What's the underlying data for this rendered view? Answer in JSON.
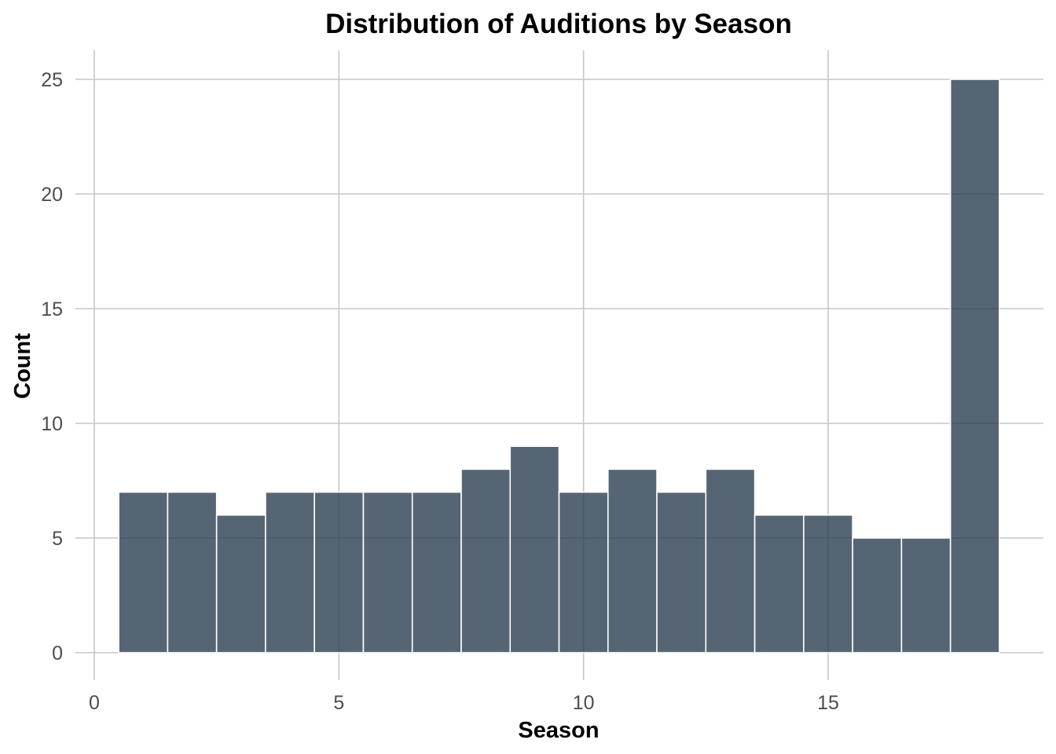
{
  "chart_data": {
    "type": "bar",
    "title": "Distribution of Auditions by Season",
    "xlabel": "Season",
    "ylabel": "Count",
    "x": [
      1,
      2,
      3,
      4,
      5,
      6,
      7,
      8,
      9,
      10,
      11,
      12,
      13,
      14,
      15,
      16,
      17,
      18
    ],
    "values": [
      7,
      7,
      6,
      7,
      7,
      7,
      7,
      8,
      9,
      7,
      8,
      7,
      8,
      6,
      6,
      5,
      5,
      25
    ],
    "bin_width": 1,
    "xlim": [
      0,
      19
    ],
    "ylim": [
      0,
      26
    ],
    "x_ticks": [
      0,
      5,
      10,
      15
    ],
    "y_ticks": [
      0,
      5,
      10,
      15,
      20,
      25
    ],
    "grid": true,
    "legend": "none",
    "bar_color": "#2c3e50",
    "bar_opacity": 0.8,
    "bar_edge_color": "#ffffff",
    "grid_color": "#c4c7cc"
  }
}
